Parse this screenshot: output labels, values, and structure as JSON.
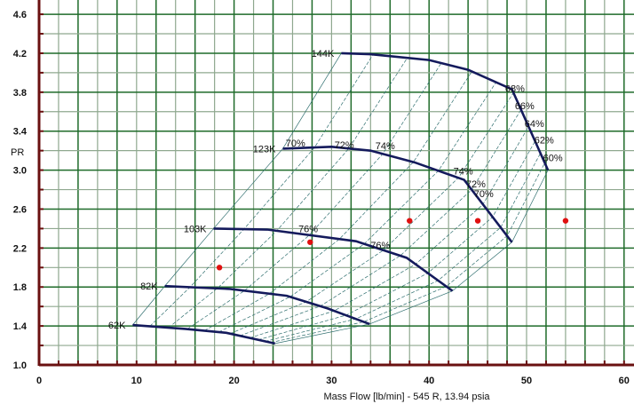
{
  "chart_data": {
    "type": "line",
    "title": "",
    "xlabel": "Mass Flow [lb/min] - 545 R, 13.94 psia",
    "ylabel": "PR",
    "xlim": [
      0,
      61
    ],
    "ylim": [
      1.0,
      4.75
    ],
    "grid": true,
    "x_ticks": [
      "0",
      "10",
      "20",
      "30",
      "40",
      "50",
      "60"
    ],
    "y_ticks": [
      "1.0",
      "1.4",
      "1.8",
      "2.2",
      "2.6",
      "3.0",
      "3.4",
      "3.8",
      "4.2",
      "4.6"
    ],
    "speed_lines": [
      {
        "name": "62K",
        "points": [
          [
            9.6,
            1.41
          ],
          [
            15.0,
            1.37
          ],
          [
            19.2,
            1.33
          ],
          [
            24.2,
            1.22
          ]
        ]
      },
      {
        "name": "82K",
        "points": [
          [
            12.9,
            1.81
          ],
          [
            19.6,
            1.78
          ],
          [
            25.4,
            1.71
          ],
          [
            29.6,
            1.58
          ],
          [
            33.9,
            1.42
          ]
        ]
      },
      {
        "name": "103K",
        "points": [
          [
            17.9,
            2.4
          ],
          [
            23.4,
            2.39
          ],
          [
            32.5,
            2.27
          ],
          [
            37.7,
            2.1
          ],
          [
            42.4,
            1.76
          ]
        ]
      },
      {
        "name": "123K",
        "points": [
          [
            25.0,
            3.22
          ],
          [
            30.0,
            3.24
          ],
          [
            34.0,
            3.2
          ],
          [
            38.5,
            3.08
          ],
          [
            43.6,
            2.9
          ],
          [
            48.5,
            2.26
          ]
        ]
      },
      {
        "name": "144K",
        "points": [
          [
            31.0,
            4.2
          ],
          [
            34.0,
            4.19
          ],
          [
            40.0,
            4.13
          ],
          [
            44.0,
            4.03
          ],
          [
            48.5,
            3.83
          ],
          [
            52.2,
            3.0
          ]
        ]
      }
    ],
    "efficiency_labels": [
      {
        "text": "70%",
        "x": 25.3,
        "y": 3.28
      },
      {
        "text": "72%",
        "x": 30.3,
        "y": 3.26
      },
      {
        "text": "74%",
        "x": 34.5,
        "y": 3.25
      },
      {
        "text": "74%",
        "x": 42.5,
        "y": 2.99
      },
      {
        "text": "72%",
        "x": 43.8,
        "y": 2.86
      },
      {
        "text": "70%",
        "x": 44.6,
        "y": 2.76
      },
      {
        "text": "76%",
        "x": 26.6,
        "y": 2.4
      },
      {
        "text": "76%",
        "x": 34.0,
        "y": 2.23
      },
      {
        "text": "68%",
        "x": 47.8,
        "y": 3.84
      },
      {
        "text": "66%",
        "x": 48.8,
        "y": 3.66
      },
      {
        "text": "64%",
        "x": 49.8,
        "y": 3.48
      },
      {
        "text": "62%",
        "x": 50.8,
        "y": 3.31
      },
      {
        "text": "60%",
        "x": 51.7,
        "y": 3.13
      }
    ],
    "operating_points": [
      [
        18.5,
        2.0
      ],
      [
        27.8,
        2.26
      ],
      [
        38.0,
        2.48
      ],
      [
        45.0,
        2.48
      ],
      [
        54.0,
        2.48
      ]
    ],
    "colors": {
      "grid_dark": "#1f6b2a",
      "grid_light": "#8fa88f",
      "speed_line": "#141a5c",
      "island": "#2f6f6f",
      "point": "#e01010",
      "axis": "#6a1010"
    }
  }
}
